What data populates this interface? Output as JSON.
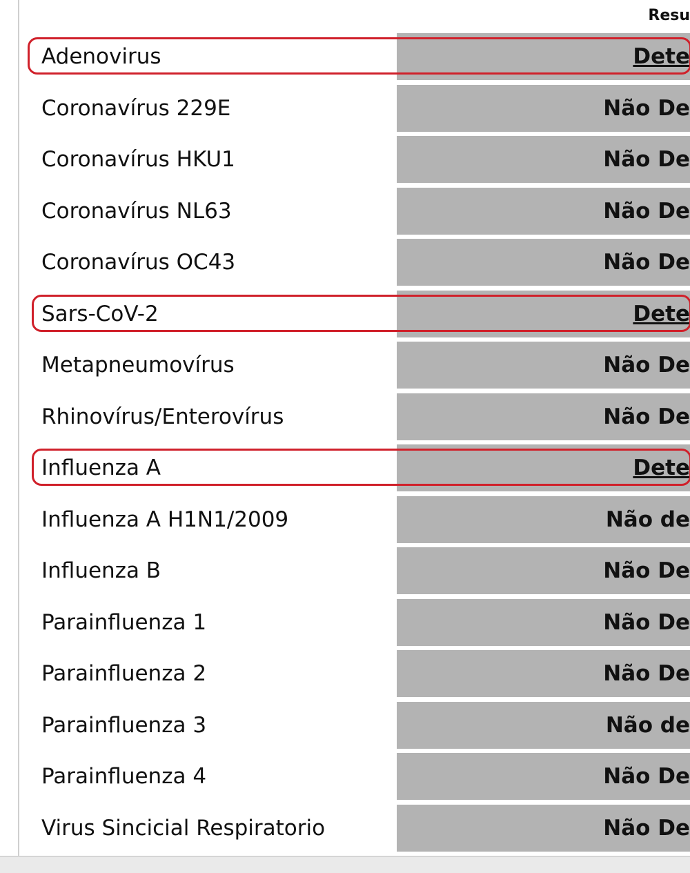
{
  "header": {
    "result_label": "Resu"
  },
  "highlight_color": "#d0202a",
  "rows": [
    {
      "name": "Adenovirus",
      "result": "Dete",
      "highlighted": true
    },
    {
      "name": "Coronavírus 229E",
      "result": "Não De",
      "highlighted": false
    },
    {
      "name": "Coronavírus HKU1",
      "result": "Não De",
      "highlighted": false
    },
    {
      "name": "Coronavírus NL63",
      "result": "Não De",
      "highlighted": false
    },
    {
      "name": "Coronavírus OC43",
      "result": "Não De",
      "highlighted": false
    },
    {
      "name": "Sars-CoV-2",
      "result": "Dete",
      "highlighted": true
    },
    {
      "name": "Metapneumovírus",
      "result": "Não De",
      "highlighted": false
    },
    {
      "name": "Rhinovírus/Enterovírus",
      "result": "Não De",
      "highlighted": false
    },
    {
      "name": "Influenza A",
      "result": "Dete",
      "highlighted": true
    },
    {
      "name": "Influenza A H1N1/2009",
      "result": "Não de",
      "highlighted": false
    },
    {
      "name": "Influenza B",
      "result": "Não De",
      "highlighted": false
    },
    {
      "name": "Parainfluenza 1",
      "result": "Não De",
      "highlighted": false
    },
    {
      "name": "Parainfluenza 2",
      "result": "Não De",
      "highlighted": false
    },
    {
      "name": "Parainfluenza 3",
      "result": "Não de",
      "highlighted": false
    },
    {
      "name": "Parainfluenza 4",
      "result": "Não De",
      "highlighted": false
    },
    {
      "name": "Virus Sincicial Respiratorio",
      "result": "Não De",
      "highlighted": false
    }
  ]
}
